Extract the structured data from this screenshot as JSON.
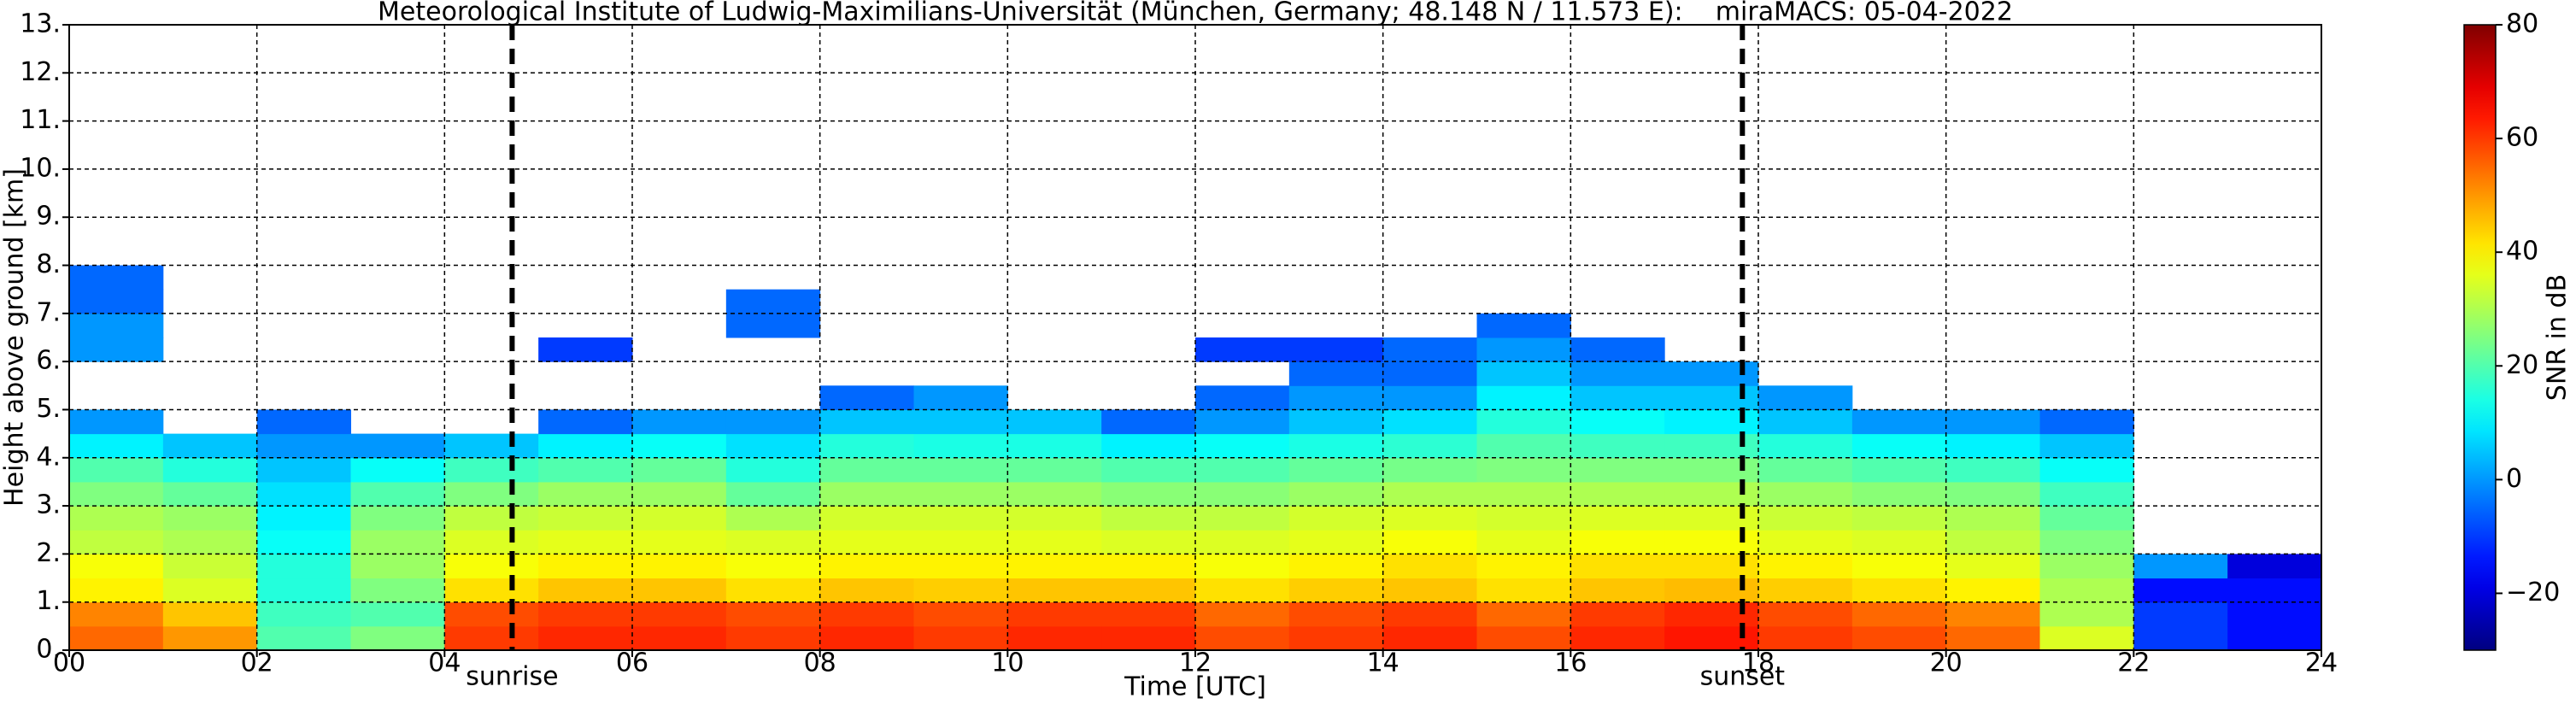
{
  "chart_data": {
    "type": "heatmap",
    "title": "Meteorological Institute of Ludwig-Maximilians-Universität (München, Germany; 48.148 N / 11.573 E):    miraMACS: 05-04-2022",
    "x_label": "Time [UTC]",
    "y_label": "Height above ground [km]",
    "colorbar_label": "SNR in dB",
    "colormap": "jet",
    "clim": [
      -30,
      80
    ],
    "colorbar_ticks": [
      {
        "value": -20,
        "label": "−20"
      },
      0,
      20,
      40,
      60,
      80
    ],
    "xlim": [
      0,
      24
    ],
    "ylim": [
      0,
      13
    ],
    "grid": true,
    "xticks": [
      {
        "value": 0,
        "label": "00"
      },
      {
        "value": 2,
        "label": "02"
      },
      {
        "value": 4,
        "label": "04"
      },
      {
        "value": 6,
        "label": "06"
      },
      {
        "value": 8,
        "label": "08"
      },
      {
        "value": 10,
        "label": "10"
      },
      {
        "value": 12,
        "label": "12"
      },
      {
        "value": 14,
        "label": "14"
      },
      {
        "value": 16,
        "label": "16"
      },
      {
        "value": 18,
        "label": "18"
      },
      {
        "value": 20,
        "label": "20"
      },
      {
        "value": 22,
        "label": "22"
      },
      {
        "value": 24,
        "label": "24"
      }
    ],
    "yticks": [
      {
        "value": 0,
        "label": "0."
      },
      {
        "value": 1,
        "label": "1."
      },
      {
        "value": 2,
        "label": "2."
      },
      {
        "value": 3,
        "label": "3."
      },
      {
        "value": 4,
        "label": "4."
      },
      {
        "value": 5,
        "label": "5."
      },
      {
        "value": 6,
        "label": "6."
      },
      {
        "value": 7,
        "label": "7."
      },
      {
        "value": 8,
        "label": "8."
      },
      {
        "value": 9,
        "label": "9."
      },
      {
        "value": 10,
        "label": "10."
      },
      {
        "value": 11,
        "label": "11."
      },
      {
        "value": 12,
        "label": "12."
      },
      {
        "value": 13,
        "label": "13."
      }
    ],
    "annotations": [
      {
        "x": 4.72,
        "label": "sunrise"
      },
      {
        "x": 17.83,
        "label": "sunset"
      }
    ],
    "x_bins": [
      0,
      1,
      2,
      3,
      4,
      5,
      6,
      7,
      8,
      9,
      10,
      11,
      12,
      13,
      14,
      15,
      16,
      17,
      18,
      19,
      20,
      21,
      22,
      23,
      24
    ],
    "y_bins": [
      0,
      0.5,
      1,
      1.5,
      2,
      2.5,
      3,
      3.5,
      4,
      4.5,
      5,
      5.5,
      6,
      6.5,
      7,
      7.5,
      8
    ],
    "values": [
      [
        55,
        52,
        40,
        38,
        32,
        30,
        25,
        20,
        10,
        0,
        null,
        null,
        0,
        0,
        -5,
        -5
      ],
      [
        50,
        45,
        35,
        33,
        30,
        28,
        22,
        15,
        5,
        null,
        null,
        null,
        null,
        null,
        null,
        null
      ],
      [
        20,
        18,
        15,
        15,
        12,
        10,
        8,
        5,
        0,
        -5,
        null,
        null,
        null,
        null,
        null,
        null
      ],
      [
        25,
        20,
        25,
        28,
        28,
        25,
        20,
        12,
        0,
        null,
        null,
        null,
        null,
        null,
        null,
        null
      ],
      [
        60,
        58,
        42,
        38,
        35,
        32,
        25,
        18,
        5,
        null,
        null,
        null,
        null,
        null,
        null,
        null
      ],
      [
        62,
        60,
        45,
        40,
        36,
        33,
        28,
        20,
        10,
        -5,
        null,
        null,
        -10,
        null,
        null,
        null
      ],
      [
        62,
        60,
        45,
        40,
        36,
        34,
        28,
        22,
        12,
        0,
        null,
        null,
        null,
        null,
        null,
        null
      ],
      [
        60,
        58,
        42,
        38,
        35,
        30,
        22,
        15,
        8,
        0,
        null,
        null,
        null,
        -5,
        -5,
        null
      ],
      [
        62,
        60,
        45,
        40,
        36,
        34,
        28,
        22,
        15,
        5,
        -5,
        null,
        null,
        null,
        null,
        null
      ],
      [
        60,
        58,
        44,
        40,
        36,
        34,
        28,
        22,
        14,
        5,
        0,
        null,
        null,
        null,
        null,
        null
      ],
      [
        62,
        60,
        45,
        40,
        36,
        34,
        28,
        22,
        14,
        5,
        null,
        null,
        null,
        null,
        null,
        null
      ],
      [
        62,
        60,
        45,
        40,
        35,
        32,
        26,
        20,
        10,
        -5,
        null,
        null,
        null,
        null,
        null,
        null
      ],
      [
        58,
        55,
        42,
        38,
        35,
        32,
        26,
        20,
        12,
        0,
        -5,
        null,
        -10,
        null,
        null,
        null
      ],
      [
        60,
        58,
        44,
        40,
        36,
        34,
        28,
        22,
        14,
        5,
        0,
        -5,
        -10,
        null,
        null,
        null
      ],
      [
        62,
        60,
        45,
        42,
        38,
        35,
        30,
        24,
        16,
        8,
        0,
        -5,
        -5,
        null,
        null,
        null
      ],
      [
        58,
        55,
        42,
        40,
        36,
        34,
        30,
        25,
        20,
        15,
        10,
        5,
        0,
        -5,
        null,
        null
      ],
      [
        62,
        60,
        45,
        42,
        38,
        35,
        30,
        25,
        18,
        12,
        5,
        0,
        -5,
        null,
        null,
        null
      ],
      [
        64,
        62,
        46,
        42,
        38,
        35,
        30,
        25,
        18,
        10,
        5,
        0,
        null,
        null,
        null,
        null
      ],
      [
        60,
        58,
        44,
        40,
        36,
        33,
        28,
        22,
        15,
        5,
        0,
        null,
        null,
        null,
        null,
        null
      ],
      [
        58,
        55,
        42,
        38,
        35,
        32,
        26,
        20,
        12,
        0,
        null,
        null,
        null,
        null,
        null,
        null
      ],
      [
        55,
        52,
        40,
        36,
        32,
        30,
        25,
        18,
        10,
        0,
        null,
        null,
        null,
        null,
        null,
        null
      ],
      [
        35,
        30,
        30,
        28,
        25,
        22,
        18,
        12,
        5,
        -5,
        null,
        null,
        null,
        null,
        null,
        null
      ],
      [
        -10,
        -10,
        -15,
        0,
        null,
        null,
        null,
        null,
        null,
        null,
        null,
        null,
        null,
        null,
        null,
        null
      ],
      [
        -15,
        -15,
        -15,
        -20,
        null,
        null,
        null,
        null,
        null,
        null,
        null,
        null,
        null,
        null,
        null,
        null
      ]
    ]
  }
}
